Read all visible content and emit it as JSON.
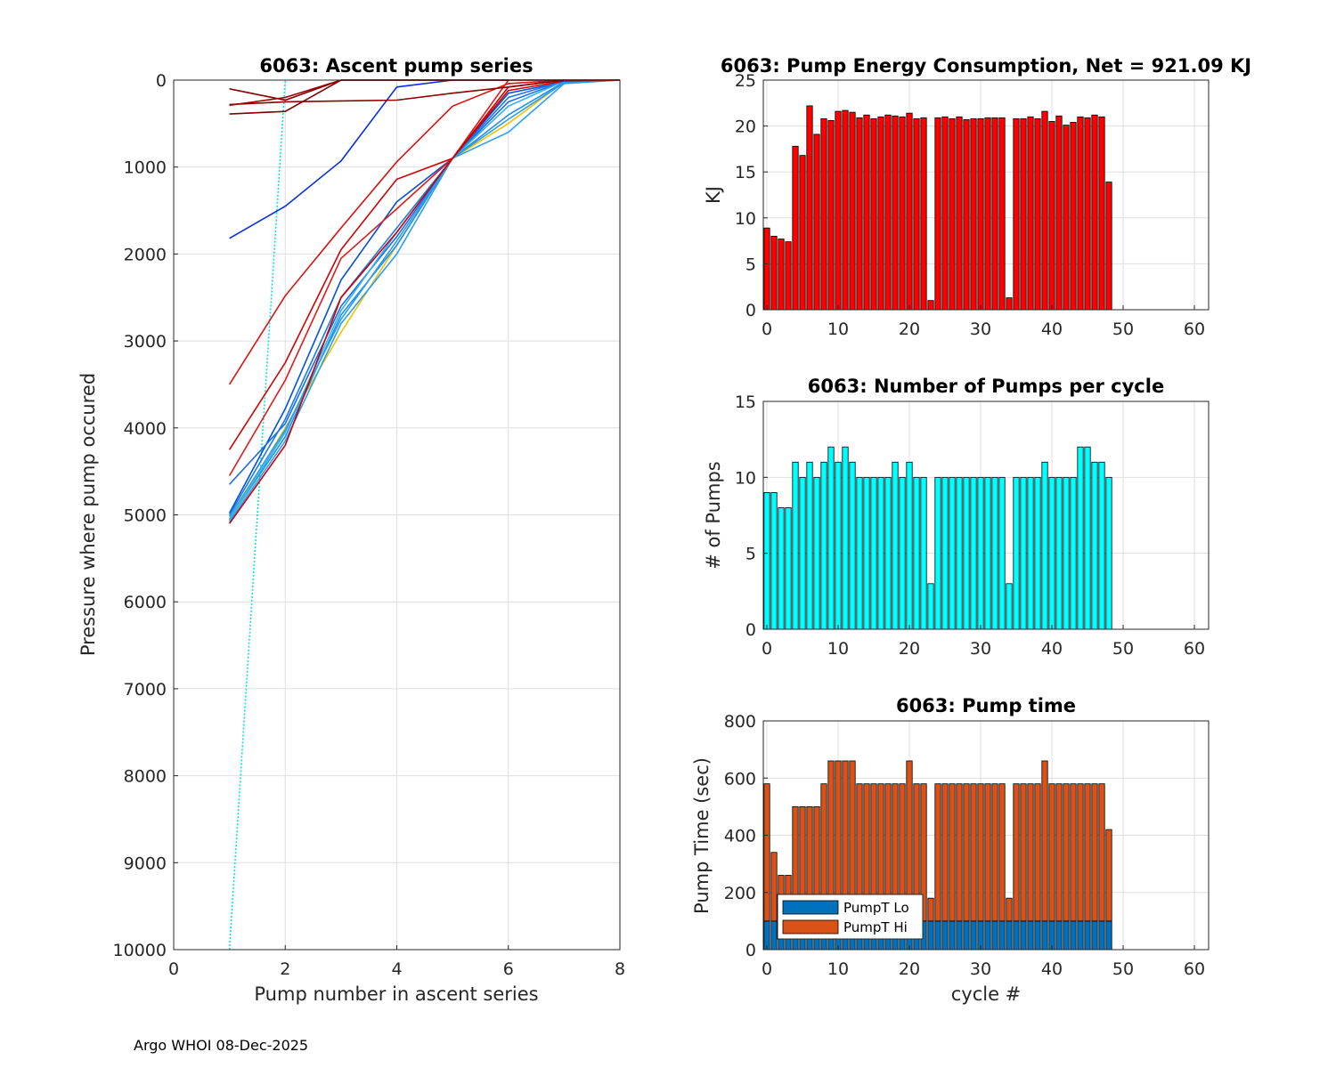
{
  "footer": "Argo WHOI 08-Dec-2025",
  "chart_data": [
    {
      "type": "line",
      "title": "6063: Ascent pump series",
      "xlabel": "Pump number in ascent series",
      "ylabel": "Pressure where pump occured",
      "xlim": [
        0,
        8
      ],
      "ylim": [
        0,
        10000
      ],
      "y_reversed": true,
      "grid": true,
      "xticks": [
        0,
        2,
        4,
        6,
        8
      ],
      "yticks": [
        0,
        1000,
        2000,
        3000,
        4000,
        5000,
        6000,
        7000,
        8000,
        9000,
        10000
      ],
      "series": [
        {
          "name": "c-cyan",
          "color": "#00e5e5",
          "style": "dotted",
          "x": [
            1,
            2
          ],
          "y": [
            10000,
            0
          ]
        },
        {
          "name": "c-yellow",
          "color": "#f2c200",
          "style": "solid",
          "x": [
            1,
            2,
            3,
            4,
            5,
            6,
            7,
            8
          ],
          "y": [
            5050,
            4000,
            2900,
            1900,
            900,
            500,
            20,
            0
          ]
        },
        {
          "name": "c-b1",
          "color": "#0050e0",
          "style": "solid",
          "x": [
            1,
            2,
            3,
            4,
            5,
            6,
            7,
            8
          ],
          "y": [
            4980,
            3780,
            2300,
            1400,
            900,
            150,
            20,
            0
          ]
        },
        {
          "name": "c-b2",
          "color": "#1e6bf0",
          "style": "solid",
          "x": [
            1,
            2,
            3,
            4,
            5,
            6,
            7,
            8
          ],
          "y": [
            4650,
            3950,
            2600,
            1800,
            900,
            250,
            10,
            0
          ]
        },
        {
          "name": "c-b3",
          "color": "#1f8ff0",
          "style": "solid",
          "x": [
            1,
            2,
            3,
            4,
            5,
            6,
            7,
            8
          ],
          "y": [
            5050,
            4100,
            2700,
            1900,
            900,
            400,
            20,
            0
          ]
        },
        {
          "name": "c-b4",
          "color": "#2aa0f0",
          "style": "solid",
          "x": [
            1,
            2,
            3,
            4,
            5,
            6,
            7,
            8
          ],
          "y": [
            5080,
            4150,
            2800,
            2000,
            900,
            600,
            40,
            0
          ]
        },
        {
          "name": "c-b5",
          "color": "#30b4ee",
          "style": "solid",
          "x": [
            1,
            2,
            3,
            4,
            5,
            6,
            7,
            8
          ],
          "y": [
            5060,
            4050,
            2650,
            1750,
            900,
            300,
            10,
            0
          ]
        },
        {
          "name": "c-b6",
          "color": "#1a7ae6",
          "style": "solid",
          "x": [
            1,
            2,
            3,
            4,
            5,
            6,
            7,
            8
          ],
          "y": [
            5000,
            3900,
            2500,
            1700,
            900,
            200,
            10,
            0
          ]
        },
        {
          "name": "c-b7",
          "color": "#2a9de8",
          "style": "solid",
          "x": [
            1,
            2,
            3,
            4,
            5,
            6,
            7,
            8
          ],
          "y": [
            5020,
            4020,
            2750,
            1850,
            900,
            450,
            30,
            0
          ]
        },
        {
          "name": "c-navy",
          "color": "#0a2ee0",
          "style": "solid",
          "x": [
            1,
            2,
            3,
            4,
            5
          ],
          "y": [
            1820,
            1450,
            930,
            80,
            0
          ]
        },
        {
          "name": "c-r1",
          "color": "#e01010",
          "style": "solid",
          "x": [
            1,
            2,
            3,
            4,
            5,
            6,
            7,
            8
          ],
          "y": [
            3500,
            2480,
            1700,
            940,
            300,
            40,
            0,
            0
          ]
        },
        {
          "name": "c-r2",
          "color": "#d00000",
          "style": "solid",
          "x": [
            1,
            2,
            3,
            4,
            5,
            6,
            7,
            8
          ],
          "y": [
            4250,
            3250,
            1950,
            1140,
            900,
            120,
            10,
            0
          ]
        },
        {
          "name": "c-r3",
          "color": "#e21a1a",
          "style": "solid",
          "x": [
            1,
            2,
            3,
            4,
            5,
            6,
            7,
            8
          ],
          "y": [
            4550,
            3450,
            2050,
            1480,
            900,
            0,
            0,
            0
          ]
        },
        {
          "name": "c-r4",
          "color": "#cc0000",
          "style": "solid",
          "x": [
            1,
            2,
            3,
            4,
            5,
            6,
            7,
            8
          ],
          "y": [
            5100,
            4200,
            2500,
            1750,
            900,
            80,
            0,
            0
          ]
        },
        {
          "name": "c-dr1",
          "color": "#800000",
          "style": "solid",
          "x": [
            1,
            2,
            3,
            4,
            5,
            6,
            7
          ],
          "y": [
            100,
            230,
            0,
            0,
            0,
            0,
            0
          ]
        },
        {
          "name": "c-dr2",
          "color": "#8b0000",
          "style": "solid",
          "x": [
            1,
            2,
            3,
            4,
            5,
            6,
            7
          ],
          "y": [
            280,
            250,
            240,
            230,
            150,
            80,
            0
          ]
        },
        {
          "name": "c-dr3",
          "color": "#7a0000",
          "style": "solid",
          "x": [
            1,
            2,
            3,
            4,
            5,
            6
          ],
          "y": [
            390,
            360,
            0,
            0,
            0,
            0
          ]
        },
        {
          "name": "c-dr4",
          "color": "#9a0000",
          "style": "solid",
          "x": [
            1,
            2,
            3,
            4,
            5,
            6
          ],
          "y": [
            290,
            200,
            0,
            0,
            0,
            0
          ]
        }
      ]
    },
    {
      "type": "bar",
      "title": "6063: Pump Energy Consumption,  Net = 921.09 KJ",
      "xlabel": "",
      "ylabel": "KJ",
      "xlim": [
        -0.5,
        62
      ],
      "ylim": [
        0,
        25
      ],
      "grid": true,
      "color": "#ff0000",
      "xticks": [
        0,
        10,
        20,
        30,
        40,
        50,
        60
      ],
      "yticks": [
        0,
        5,
        10,
        15,
        20,
        25
      ],
      "x": [
        0,
        1,
        2,
        3,
        4,
        5,
        6,
        7,
        8,
        9,
        10,
        11,
        12,
        13,
        14,
        15,
        16,
        17,
        18,
        19,
        20,
        21,
        22,
        23,
        24,
        25,
        26,
        27,
        28,
        29,
        30,
        31,
        32,
        33,
        34,
        35,
        36,
        37,
        38,
        39,
        40,
        41,
        42,
        43,
        44,
        45,
        46,
        47,
        48
      ],
      "values": [
        8.9,
        8.0,
        7.7,
        7.4,
        17.8,
        16.8,
        22.2,
        19.1,
        20.8,
        20.6,
        21.6,
        21.7,
        21.5,
        20.9,
        21.2,
        20.8,
        21.0,
        21.2,
        21.1,
        21.0,
        21.4,
        20.8,
        20.9,
        1.0,
        20.9,
        21.0,
        20.8,
        21.0,
        20.7,
        20.8,
        20.8,
        20.9,
        20.9,
        20.9,
        1.3,
        20.8,
        20.8,
        21.0,
        20.8,
        21.6,
        20.5,
        21.1,
        20.1,
        20.4,
        21.0,
        20.9,
        21.2,
        21.0,
        13.9
      ]
    },
    {
      "type": "bar",
      "title": "6063: Number of Pumps per cycle",
      "xlabel": "",
      "ylabel": "# of Pumps",
      "xlim": [
        -0.5,
        62
      ],
      "ylim": [
        0,
        15
      ],
      "grid": true,
      "color": "#00ffff",
      "xticks": [
        0,
        10,
        20,
        30,
        40,
        50,
        60
      ],
      "yticks": [
        0,
        5,
        10,
        15
      ],
      "x": [
        0,
        1,
        2,
        3,
        4,
        5,
        6,
        7,
        8,
        9,
        10,
        11,
        12,
        13,
        14,
        15,
        16,
        17,
        18,
        19,
        20,
        21,
        22,
        23,
        24,
        25,
        26,
        27,
        28,
        29,
        30,
        31,
        32,
        33,
        34,
        35,
        36,
        37,
        38,
        39,
        40,
        41,
        42,
        43,
        44,
        45,
        46,
        47,
        48
      ],
      "values": [
        9,
        9,
        8,
        8,
        11,
        10,
        11,
        10,
        11,
        12,
        11,
        12,
        11,
        10,
        10,
        10,
        10,
        10,
        11,
        10,
        11,
        10,
        10,
        3,
        10,
        10,
        10,
        10,
        10,
        10,
        10,
        10,
        10,
        10,
        3,
        10,
        10,
        10,
        10,
        11,
        10,
        10,
        10,
        10,
        12,
        12,
        11,
        11,
        10
      ]
    },
    {
      "type": "bar",
      "stacked": true,
      "title": "6063: Pump time",
      "xlabel": "cycle #",
      "ylabel": "Pump Time (sec)",
      "xlim": [
        -0.5,
        62
      ],
      "ylim": [
        0,
        800
      ],
      "grid": true,
      "xticks": [
        0,
        10,
        20,
        30,
        40,
        50,
        60
      ],
      "yticks": [
        0,
        200,
        400,
        600,
        800
      ],
      "legend": "bottom-left",
      "x": [
        0,
        1,
        2,
        3,
        4,
        5,
        6,
        7,
        8,
        9,
        10,
        11,
        12,
        13,
        14,
        15,
        16,
        17,
        18,
        19,
        20,
        21,
        22,
        23,
        24,
        25,
        26,
        27,
        28,
        29,
        30,
        31,
        32,
        33,
        34,
        35,
        36,
        37,
        38,
        39,
        40,
        41,
        42,
        43,
        44,
        45,
        46,
        47,
        48
      ],
      "series": [
        {
          "name": "PumpT Lo",
          "color": "#0072bd",
          "values": [
            100,
            100,
            100,
            100,
            100,
            100,
            100,
            100,
            100,
            100,
            100,
            100,
            100,
            100,
            100,
            100,
            100,
            100,
            100,
            100,
            100,
            100,
            100,
            100,
            100,
            100,
            100,
            100,
            100,
            100,
            100,
            100,
            100,
            100,
            100,
            100,
            100,
            100,
            100,
            100,
            100,
            100,
            100,
            100,
            100,
            100,
            100,
            100,
            100
          ]
        },
        {
          "name": "PumpT Hi",
          "color": "#d95319",
          "values": [
            480,
            240,
            160,
            160,
            400,
            400,
            400,
            400,
            480,
            560,
            560,
            560,
            560,
            480,
            480,
            480,
            480,
            480,
            480,
            480,
            560,
            480,
            480,
            80,
            480,
            480,
            480,
            480,
            480,
            480,
            480,
            480,
            480,
            480,
            80,
            480,
            480,
            480,
            480,
            560,
            480,
            480,
            480,
            480,
            480,
            480,
            480,
            480,
            320
          ]
        }
      ]
    }
  ]
}
